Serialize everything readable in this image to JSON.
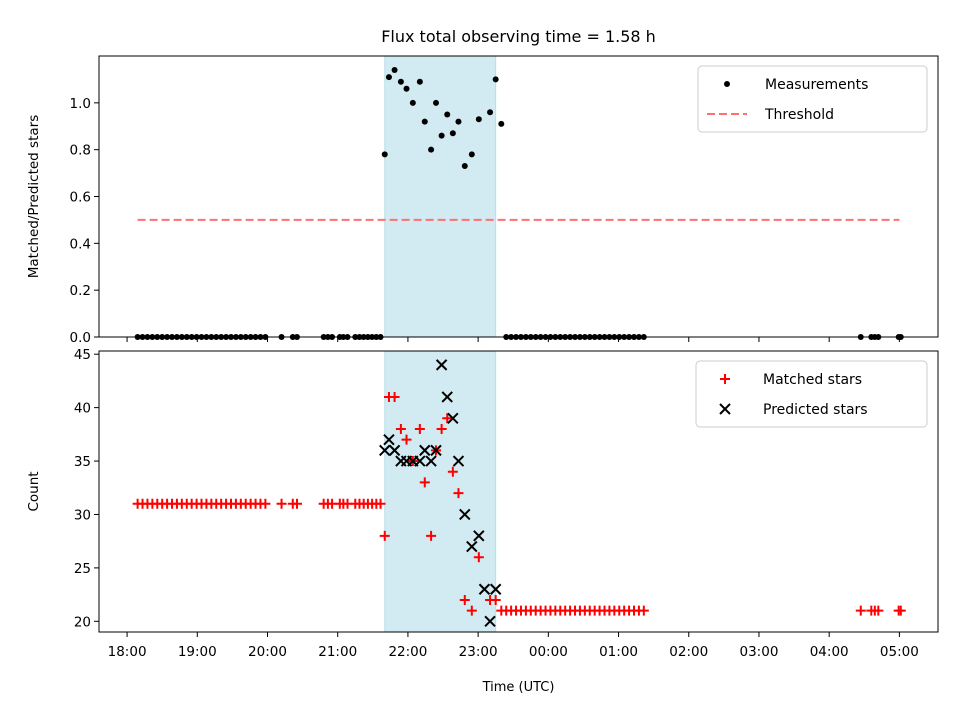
{
  "title": "Flux total observing time = 1.58 h",
  "x_axis": {
    "label": "Time (UTC)",
    "unit": "hours after 18:00",
    "range": [
      -0.4,
      11.55
    ],
    "ticks": [
      0,
      1,
      2,
      3,
      4,
      5,
      6,
      7,
      8,
      9,
      10,
      11
    ],
    "tick_labels": [
      "18:00",
      "19:00",
      "20:00",
      "21:00",
      "22:00",
      "23:00",
      "00:00",
      "01:00",
      "02:00",
      "03:00",
      "04:00",
      "05:00"
    ]
  },
  "highlight_span": {
    "start": 3.67,
    "end": 5.25,
    "color": "#add8e6"
  },
  "chart_data": [
    {
      "type": "scatter",
      "name": "top",
      "ylabel": "Matched/Predicted stars",
      "ylim": [
        0,
        1.2
      ],
      "yticks": [
        0.0,
        0.2,
        0.4,
        0.6,
        0.8,
        1.0
      ],
      "ytick_labels": [
        "0.0",
        "0.2",
        "0.4",
        "0.6",
        "0.8",
        "1.0"
      ],
      "legend_position": "top-right",
      "series": [
        {
          "name": "Measurements",
          "kind": "dots",
          "color": "#000000",
          "x": [
            0.15,
            0.22,
            0.29,
            0.36,
            0.43,
            0.5,
            0.57,
            0.64,
            0.71,
            0.78,
            0.85,
            0.92,
            0.99,
            1.06,
            1.13,
            1.2,
            1.27,
            1.34,
            1.41,
            1.48,
            1.55,
            1.62,
            1.69,
            1.76,
            1.83,
            1.9,
            1.97,
            2.2,
            2.36,
            2.42,
            2.8,
            2.86,
            2.92,
            3.03,
            3.08,
            3.14,
            3.25,
            3.31,
            3.37,
            3.43,
            3.49,
            3.55,
            3.61,
            3.67,
            3.73,
            3.81,
            3.9,
            3.98,
            4.07,
            4.17,
            4.24,
            4.33,
            4.4,
            4.48,
            4.56,
            4.64,
            4.72,
            4.81,
            4.91,
            5.01,
            5.17,
            5.25,
            5.33,
            5.4,
            5.47,
            5.54,
            5.61,
            5.68,
            5.75,
            5.82,
            5.89,
            5.96,
            6.03,
            6.1,
            6.17,
            6.24,
            6.31,
            6.38,
            6.45,
            6.52,
            6.59,
            6.66,
            6.73,
            6.8,
            6.87,
            6.94,
            7.01,
            7.08,
            7.15,
            7.22,
            7.29,
            7.36,
            10.45,
            10.6,
            10.65,
            10.7,
            10.99,
            11.02
          ],
          "y": [
            0,
            0,
            0,
            0,
            0,
            0,
            0,
            0,
            0,
            0,
            0,
            0,
            0,
            0,
            0,
            0,
            0,
            0,
            0,
            0,
            0,
            0,
            0,
            0,
            0,
            0,
            0,
            0,
            0,
            0,
            0,
            0,
            0,
            0,
            0,
            0,
            0,
            0,
            0,
            0,
            0,
            0,
            0,
            0.78,
            1.11,
            1.14,
            1.09,
            1.06,
            1.0,
            1.09,
            0.92,
            0.8,
            1.0,
            0.86,
            0.95,
            0.87,
            0.92,
            0.73,
            0.78,
            0.93,
            0.96,
            1.1,
            0.91,
            0,
            0,
            0,
            0,
            0,
            0,
            0,
            0,
            0,
            0,
            0,
            0,
            0,
            0,
            0,
            0,
            0,
            0,
            0,
            0,
            0,
            0,
            0,
            0,
            0,
            0,
            0,
            0,
            0,
            0,
            0,
            0,
            0,
            0,
            0
          ]
        },
        {
          "name": "Threshold",
          "kind": "dashed-line",
          "color": "#ff7070",
          "x": [
            0.15,
            11.0
          ],
          "y": [
            0.5,
            0.5
          ]
        }
      ]
    },
    {
      "type": "scatter",
      "name": "bottom",
      "ylabel": "Count",
      "ylim": [
        19,
        45.3
      ],
      "yticks": [
        20,
        25,
        30,
        35,
        40,
        45
      ],
      "ytick_labels": [
        "20",
        "25",
        "30",
        "35",
        "40",
        "45"
      ],
      "legend_position": "top-right",
      "series": [
        {
          "name": "Matched stars",
          "kind": "plus",
          "color": "#ff0000",
          "x": [
            0.15,
            0.22,
            0.29,
            0.36,
            0.43,
            0.5,
            0.57,
            0.64,
            0.71,
            0.78,
            0.85,
            0.92,
            0.99,
            1.06,
            1.13,
            1.2,
            1.27,
            1.34,
            1.41,
            1.48,
            1.55,
            1.62,
            1.69,
            1.76,
            1.83,
            1.9,
            1.97,
            2.2,
            2.36,
            2.42,
            2.8,
            2.86,
            2.92,
            3.03,
            3.08,
            3.14,
            3.25,
            3.31,
            3.37,
            3.43,
            3.49,
            3.55,
            3.61,
            3.67,
            3.73,
            3.81,
            3.9,
            3.98,
            4.07,
            4.17,
            4.24,
            4.33,
            4.4,
            4.48,
            4.56,
            4.64,
            4.72,
            4.81,
            4.91,
            5.01,
            5.17,
            5.25,
            5.33,
            5.4,
            5.47,
            5.54,
            5.61,
            5.68,
            5.75,
            5.82,
            5.89,
            5.96,
            6.03,
            6.1,
            6.17,
            6.24,
            6.31,
            6.38,
            6.45,
            6.52,
            6.59,
            6.66,
            6.73,
            6.8,
            6.87,
            6.94,
            7.01,
            7.08,
            7.15,
            7.22,
            7.29,
            7.36,
            10.45,
            10.6,
            10.65,
            10.7,
            10.99,
            11.02
          ],
          "y": [
            31,
            31,
            31,
            31,
            31,
            31,
            31,
            31,
            31,
            31,
            31,
            31,
            31,
            31,
            31,
            31,
            31,
            31,
            31,
            31,
            31,
            31,
            31,
            31,
            31,
            31,
            31,
            31,
            31,
            31,
            31,
            31,
            31,
            31,
            31,
            31,
            31,
            31,
            31,
            31,
            31,
            31,
            31,
            28,
            41,
            41,
            38,
            37,
            35,
            38,
            33,
            28,
            36,
            38,
            39,
            34,
            32,
            22,
            21,
            26,
            22,
            22,
            21,
            21,
            21,
            21,
            21,
            21,
            21,
            21,
            21,
            21,
            21,
            21,
            21,
            21,
            21,
            21,
            21,
            21,
            21,
            21,
            21,
            21,
            21,
            21,
            21,
            21,
            21,
            21,
            21,
            21,
            21,
            21,
            21,
            21,
            21,
            21
          ]
        },
        {
          "name": "Predicted stars",
          "kind": "x",
          "color": "#000000",
          "x": [
            3.67,
            3.73,
            3.81,
            3.9,
            3.98,
            4.07,
            4.17,
            4.24,
            4.33,
            4.4,
            4.48,
            4.56,
            4.64,
            4.72,
            4.81,
            4.91,
            5.01,
            5.09,
            5.17,
            5.25
          ],
          "y": [
            36,
            37,
            36,
            35,
            35,
            35,
            35,
            36,
            35,
            36,
            44,
            41,
            39,
            35,
            30,
            27,
            28,
            23,
            20,
            23
          ]
        }
      ]
    }
  ]
}
